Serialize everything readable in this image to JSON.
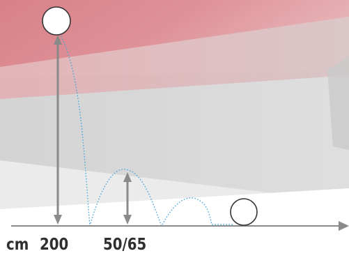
{
  "labels": {
    "unit": "cm",
    "drop_height": "200",
    "bounce_height": "50/65"
  },
  "colors": {
    "band_red": "#dc8c93",
    "band_grey": "#d4d4d4",
    "band_light": "#ebebeb",
    "arrow": "#8a8a8a",
    "trajectory": "#4da6d8",
    "ground": "#8a8a8a",
    "ball_fill": "#ffffff",
    "ball_stroke": "#333333",
    "text": "#2f2f2f"
  }
}
